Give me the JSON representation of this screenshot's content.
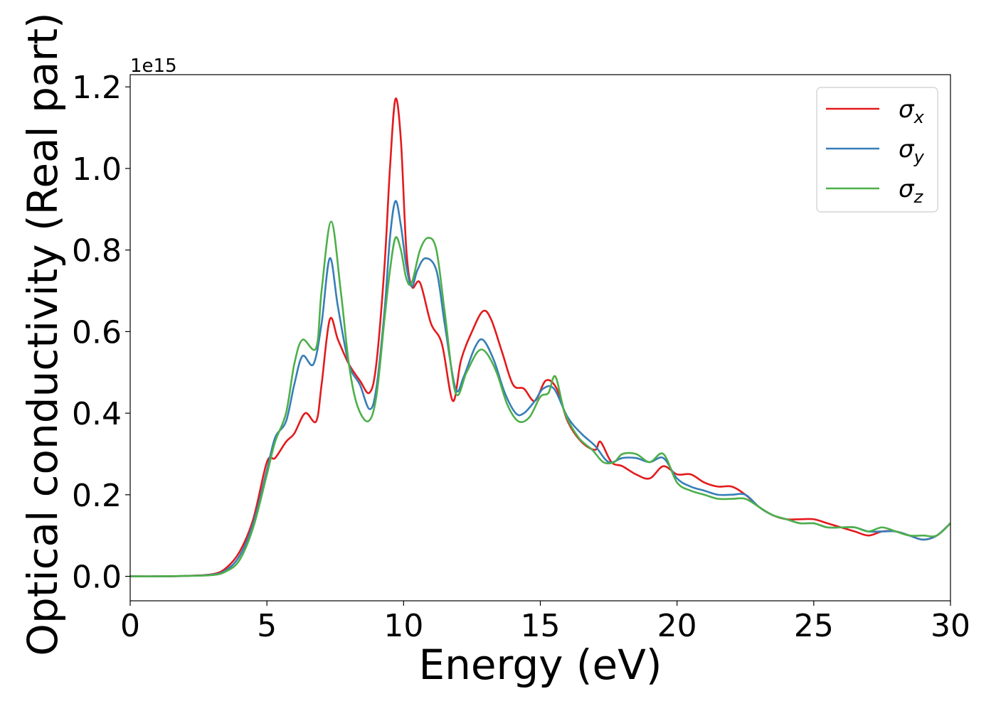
{
  "chart_data": {
    "type": "line",
    "xlabel": "Energy (eV)",
    "ylabel": "Optical conductivity (Real part)",
    "y_offset_label": "1e15",
    "xlim": [
      0,
      30
    ],
    "ylim": [
      -0.06,
      1.23
    ],
    "x_ticks": [
      0,
      5,
      10,
      15,
      20,
      25,
      30
    ],
    "x_tick_labels": [
      "0",
      "5",
      "10",
      "15",
      "20",
      "25",
      "30"
    ],
    "y_ticks": [
      0.0,
      0.2,
      0.4,
      0.6,
      0.8,
      1.0,
      1.2
    ],
    "y_tick_labels": [
      "0.0",
      "0.2",
      "0.4",
      "0.6",
      "0.8",
      "1.0",
      "1.2"
    ],
    "grid": false,
    "legend_position": "top-right",
    "series": [
      {
        "name": "σx",
        "legend_symbol": "σ",
        "legend_subscript": "x",
        "color": "#e41a1c",
        "points": [
          [
            0,
            0
          ],
          [
            1,
            0
          ],
          [
            2,
            0.001
          ],
          [
            3,
            0.005
          ],
          [
            3.5,
            0.02
          ],
          [
            4,
            0.06
          ],
          [
            4.5,
            0.14
          ],
          [
            5,
            0.28
          ],
          [
            5.3,
            0.29
          ],
          [
            5.7,
            0.33
          ],
          [
            6,
            0.35
          ],
          [
            6.4,
            0.4
          ],
          [
            6.8,
            0.38
          ],
          [
            7,
            0.47
          ],
          [
            7.3,
            0.63
          ],
          [
            7.6,
            0.58
          ],
          [
            8,
            0.52
          ],
          [
            8.4,
            0.48
          ],
          [
            8.75,
            0.45
          ],
          [
            9,
            0.52
          ],
          [
            9.3,
            0.76
          ],
          [
            9.5,
            1.0
          ],
          [
            9.7,
            1.17
          ],
          [
            9.9,
            1.07
          ],
          [
            10.1,
            0.8
          ],
          [
            10.3,
            0.71
          ],
          [
            10.6,
            0.72
          ],
          [
            11,
            0.62
          ],
          [
            11.4,
            0.57
          ],
          [
            11.8,
            0.43
          ],
          [
            12.1,
            0.53
          ],
          [
            12.5,
            0.6
          ],
          [
            12.9,
            0.65
          ],
          [
            13.2,
            0.63
          ],
          [
            13.6,
            0.55
          ],
          [
            14,
            0.47
          ],
          [
            14.4,
            0.46
          ],
          [
            14.8,
            0.43
          ],
          [
            15.2,
            0.48
          ],
          [
            15.6,
            0.46
          ],
          [
            16,
            0.38
          ],
          [
            16.5,
            0.33
          ],
          [
            17,
            0.31
          ],
          [
            17.2,
            0.33
          ],
          [
            17.6,
            0.28
          ],
          [
            18,
            0.27
          ],
          [
            18.5,
            0.25
          ],
          [
            19,
            0.24
          ],
          [
            19.5,
            0.27
          ],
          [
            20,
            0.25
          ],
          [
            20.5,
            0.25
          ],
          [
            21,
            0.23
          ],
          [
            21.5,
            0.22
          ],
          [
            22,
            0.22
          ],
          [
            22.5,
            0.2
          ],
          [
            23,
            0.17
          ],
          [
            23.5,
            0.15
          ],
          [
            24,
            0.14
          ],
          [
            24.5,
            0.14
          ],
          [
            25,
            0.14
          ],
          [
            25.5,
            0.13
          ],
          [
            26,
            0.12
          ],
          [
            26.5,
            0.11
          ],
          [
            27,
            0.1
          ],
          [
            27.5,
            0.11
          ],
          [
            28,
            0.11
          ],
          [
            28.5,
            0.1
          ],
          [
            29,
            0.09
          ],
          [
            29.5,
            0.1
          ],
          [
            30,
            0.13
          ]
        ]
      },
      {
        "name": "σy",
        "legend_symbol": "σ",
        "legend_subscript": "y",
        "color": "#377eb8",
        "points": [
          [
            0,
            0
          ],
          [
            1,
            0
          ],
          [
            2,
            0.001
          ],
          [
            3,
            0.004
          ],
          [
            3.5,
            0.015
          ],
          [
            4,
            0.05
          ],
          [
            4.5,
            0.13
          ],
          [
            5,
            0.26
          ],
          [
            5.3,
            0.34
          ],
          [
            5.7,
            0.38
          ],
          [
            6,
            0.47
          ],
          [
            6.3,
            0.54
          ],
          [
            6.7,
            0.52
          ],
          [
            7,
            0.62
          ],
          [
            7.3,
            0.78
          ],
          [
            7.6,
            0.66
          ],
          [
            8,
            0.52
          ],
          [
            8.4,
            0.47
          ],
          [
            8.75,
            0.41
          ],
          [
            9,
            0.46
          ],
          [
            9.3,
            0.65
          ],
          [
            9.5,
            0.83
          ],
          [
            9.7,
            0.92
          ],
          [
            9.9,
            0.86
          ],
          [
            10.1,
            0.76
          ],
          [
            10.3,
            0.71
          ],
          [
            10.5,
            0.75
          ],
          [
            10.8,
            0.78
          ],
          [
            11.2,
            0.75
          ],
          [
            11.5,
            0.62
          ],
          [
            11.9,
            0.46
          ],
          [
            12.2,
            0.49
          ],
          [
            12.6,
            0.56
          ],
          [
            12.9,
            0.58
          ],
          [
            13.3,
            0.53
          ],
          [
            13.7,
            0.45
          ],
          [
            14.1,
            0.4
          ],
          [
            14.4,
            0.4
          ],
          [
            14.8,
            0.43
          ],
          [
            15.1,
            0.46
          ],
          [
            15.5,
            0.46
          ],
          [
            16,
            0.39
          ],
          [
            16.5,
            0.35
          ],
          [
            17,
            0.32
          ],
          [
            17.5,
            0.28
          ],
          [
            18,
            0.29
          ],
          [
            18.5,
            0.29
          ],
          [
            19,
            0.28
          ],
          [
            19.5,
            0.29
          ],
          [
            20,
            0.24
          ],
          [
            20.5,
            0.22
          ],
          [
            21,
            0.21
          ],
          [
            21.5,
            0.2
          ],
          [
            22,
            0.2
          ],
          [
            22.5,
            0.2
          ],
          [
            23,
            0.17
          ],
          [
            23.5,
            0.15
          ],
          [
            24,
            0.14
          ],
          [
            24.5,
            0.13
          ],
          [
            25,
            0.13
          ],
          [
            25.5,
            0.12
          ],
          [
            26,
            0.12
          ],
          [
            26.5,
            0.12
          ],
          [
            27,
            0.11
          ],
          [
            27.5,
            0.11
          ],
          [
            28,
            0.11
          ],
          [
            28.5,
            0.1
          ],
          [
            29,
            0.09
          ],
          [
            29.5,
            0.1
          ],
          [
            30,
            0.13
          ]
        ]
      },
      {
        "name": "σz",
        "legend_symbol": "σ",
        "legend_subscript": "z",
        "color": "#4daf4a",
        "points": [
          [
            0,
            0
          ],
          [
            1,
            0
          ],
          [
            2,
            0.001
          ],
          [
            3,
            0.003
          ],
          [
            3.5,
            0.012
          ],
          [
            4,
            0.04
          ],
          [
            4.5,
            0.12
          ],
          [
            5,
            0.25
          ],
          [
            5.3,
            0.33
          ],
          [
            5.7,
            0.4
          ],
          [
            6,
            0.52
          ],
          [
            6.3,
            0.58
          ],
          [
            6.8,
            0.56
          ],
          [
            7,
            0.7
          ],
          [
            7.35,
            0.87
          ],
          [
            7.7,
            0.7
          ],
          [
            8,
            0.52
          ],
          [
            8.3,
            0.42
          ],
          [
            8.7,
            0.38
          ],
          [
            9,
            0.44
          ],
          [
            9.3,
            0.63
          ],
          [
            9.5,
            0.75
          ],
          [
            9.7,
            0.83
          ],
          [
            9.9,
            0.8
          ],
          [
            10.1,
            0.73
          ],
          [
            10.3,
            0.72
          ],
          [
            10.6,
            0.8
          ],
          [
            10.9,
            0.83
          ],
          [
            11.2,
            0.8
          ],
          [
            11.5,
            0.65
          ],
          [
            11.9,
            0.45
          ],
          [
            12.3,
            0.5
          ],
          [
            12.7,
            0.55
          ],
          [
            13,
            0.55
          ],
          [
            13.4,
            0.5
          ],
          [
            13.8,
            0.42
          ],
          [
            14.2,
            0.38
          ],
          [
            14.6,
            0.39
          ],
          [
            15,
            0.44
          ],
          [
            15.3,
            0.45
          ],
          [
            15.55,
            0.49
          ],
          [
            15.9,
            0.4
          ],
          [
            16.4,
            0.34
          ],
          [
            16.9,
            0.31
          ],
          [
            17.3,
            0.28
          ],
          [
            17.7,
            0.28
          ],
          [
            18,
            0.3
          ],
          [
            18.5,
            0.3
          ],
          [
            19,
            0.28
          ],
          [
            19.5,
            0.3
          ],
          [
            20,
            0.23
          ],
          [
            20.5,
            0.21
          ],
          [
            21,
            0.2
          ],
          [
            21.5,
            0.19
          ],
          [
            22,
            0.19
          ],
          [
            22.5,
            0.19
          ],
          [
            23,
            0.17
          ],
          [
            23.5,
            0.15
          ],
          [
            24,
            0.14
          ],
          [
            24.5,
            0.13
          ],
          [
            25,
            0.13
          ],
          [
            25.5,
            0.12
          ],
          [
            26,
            0.12
          ],
          [
            26.5,
            0.12
          ],
          [
            27,
            0.11
          ],
          [
            27.5,
            0.12
          ],
          [
            28,
            0.11
          ],
          [
            28.5,
            0.1
          ],
          [
            29,
            0.1
          ],
          [
            29.5,
            0.1
          ],
          [
            30,
            0.13
          ]
        ]
      }
    ]
  }
}
